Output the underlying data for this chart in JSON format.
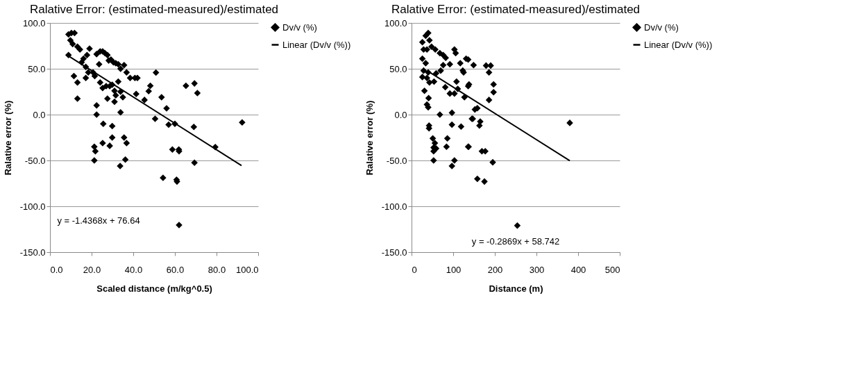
{
  "chart_data": [
    {
      "type": "scatter",
      "title": "Ralative Error: (estimated-measured)/estimated",
      "xlabel": "Scaled distance (m/kg^0.5)",
      "ylabel": "Ralative error (%)",
      "grid": "y",
      "legend": "right",
      "xlim": [
        0,
        100
      ],
      "ylim": [
        -150,
        100
      ],
      "xticks": [
        {
          "value": 0,
          "label": "0.0"
        },
        {
          "value": 20,
          "label": "20.0"
        },
        {
          "value": 40,
          "label": "40.0"
        },
        {
          "value": 60,
          "label": "60.0"
        },
        {
          "value": 80,
          "label": "80.0"
        },
        {
          "value": 100,
          "label": "100.0"
        }
      ],
      "yticks": [
        {
          "value": -150,
          "label": "-150.0"
        },
        {
          "value": -100,
          "label": "-100.0"
        },
        {
          "value": -50,
          "label": "-50.0"
        },
        {
          "value": 0,
          "label": "0.0"
        },
        {
          "value": 50,
          "label": "50.0"
        },
        {
          "value": 100,
          "label": "100.0"
        }
      ],
      "annotations": [
        "y = -1.4368x + 76.64"
      ],
      "series": [
        {
          "name": "Dv/v (%)",
          "marker": "diamond",
          "color": "#000000",
          "x": [
            8.9,
            10.3,
            11.8,
            9.8,
            10.9,
            8.9,
            11.5,
            13.2,
            13.2,
            13.2,
            14.4,
            15.2,
            16.1,
            17.2,
            17.8,
            19,
            18.4,
            17.2,
            20.7,
            21.5,
            22.4,
            24.1,
            23.6,
            25.3,
            26.4,
            27.6,
            28.2,
            29.3,
            30.5,
            31.6,
            32.8,
            33.9,
            35.6,
            36.8,
            38.5,
            40.8,
            42,
            41.4,
            45.4,
            24.1,
            25.3,
            27,
            28.7,
            29.9,
            31,
            31.6,
            32.8,
            33.9,
            35,
            27.6,
            31,
            22.4,
            22.4,
            33.9,
            25.6,
            29.9,
            29.9,
            35.6,
            36.8,
            25.3,
            21.3,
            21.8,
            28.7,
            21.3,
            36.2,
            33.7,
            50.9,
            48.2,
            47.4,
            53.6,
            56,
            50.5,
            57,
            60,
            58.8,
            61.9,
            65.3,
            69.4,
            70.8,
            69.1,
            92.3,
            79.4,
            62,
            69.4,
            61,
            62,
            54.3,
            60.8
          ],
          "values": [
            87.5,
            89,
            89,
            81,
            77,
            65,
            42,
            35,
            17.5,
            74,
            71,
            57,
            61,
            52,
            65,
            72,
            46,
            40,
            46,
            42,
            66,
            69,
            55,
            69,
            67,
            65,
            59,
            60,
            57,
            56,
            55,
            50,
            54,
            46,
            40,
            40,
            40,
            22.5,
            16,
            35,
            29,
            31,
            31,
            32.5,
            26,
            21,
            36,
            25,
            19,
            17.5,
            14,
            10,
            0,
            2.5,
            -10,
            -12.5,
            -25,
            -25,
            -31,
            -31,
            -35,
            -40,
            -34,
            -50,
            -49,
            -56,
            45.8,
            31.5,
            25.5,
            19,
            6.8,
            -4.5,
            -11,
            -10,
            -38,
            -38,
            31.5,
            34,
            23.5,
            -13.5,
            -8.5,
            -35.4,
            -40,
            -52.5,
            -73,
            -120.5,
            -69,
            -71
          ]
        },
        {
          "name": "Linear (Dv/v (%))",
          "type": "line",
          "line_style": "solid",
          "color": "#000000",
          "x": [
            8,
            92
          ],
          "values": [
            65.2,
            -55.6
          ]
        }
      ]
    },
    {
      "type": "scatter",
      "title": "Ralative Error: (estimated-measured)/estimated",
      "xlabel": "Distance (m)",
      "ylabel": "Ralative error (%)",
      "grid": "y",
      "legend": "right",
      "xlim": [
        0,
        500
      ],
      "ylim": [
        -150,
        100
      ],
      "xticks": [
        0,
        100,
        200,
        300,
        400,
        500
      ],
      "yticks": [
        {
          "value": -150,
          "label": "-150.0"
        },
        {
          "value": -100,
          "label": "-100.0"
        },
        {
          "value": -50,
          "label": "-50.0"
        },
        {
          "value": 0,
          "label": "0.0"
        },
        {
          "value": 50,
          "label": "50.0"
        },
        {
          "value": 100,
          "label": "100.0"
        }
      ],
      "annotations": [
        "y = -0.2869x + 58.742"
      ],
      "series": [
        {
          "name": "Dv/v (%)",
          "marker": "diamond",
          "color": "#000000",
          "x": [
            40,
            34,
            26,
            43,
            29,
            37,
            48,
            57,
            68,
            76,
            82,
            26,
            34,
            29,
            40,
            26,
            37,
            54,
            59,
            70,
            76,
            92,
            103,
            106,
            117,
            123,
            125,
            131,
            136,
            149,
            138,
            136,
            108,
            103,
            92,
            81,
            127,
            111,
            152,
            147,
            163,
            119,
            97,
            97,
            68,
            42,
            42,
            51,
            56,
            53,
            59,
            53,
            53,
            86,
            84,
            136,
            97,
            103,
            169,
            177,
            158,
            175,
            40,
            41,
            37,
            43,
            31,
            179,
            190,
            186,
            197,
            197,
            186,
            195,
            158,
            165,
            145,
            137,
            380,
            254
          ],
          "values": [
            89,
            86,
            79,
            81,
            71,
            71,
            74,
            71,
            67,
            65,
            62,
            61,
            56,
            48,
            46,
            41,
            40,
            36,
            45,
            48,
            54,
            55,
            71,
            67,
            56,
            48,
            46,
            61,
            60,
            54,
            33,
            31,
            36,
            23,
            23,
            30,
            19,
            28,
            5.6,
            -4.5,
            -12,
            -13,
            -11,
            2,
            0,
            -12,
            -15,
            -26,
            -31,
            -36,
            -37,
            -40,
            -50,
            -26,
            -35,
            -35,
            -56,
            -50,
            -40,
            -40,
            -70,
            -73,
            8,
            18,
            11,
            35,
            26,
            53.5,
            53.5,
            46,
            33,
            24.5,
            16,
            -52,
            7,
            -7.6,
            -4.5,
            -35,
            -9,
            -121
          ]
        },
        {
          "name": "Linear (Dv/v (%))",
          "type": "line",
          "line_style": "solid",
          "color": "#000000",
          "x": [
            45,
            380
          ],
          "values": [
            45.8,
            -50.3
          ]
        }
      ]
    }
  ]
}
